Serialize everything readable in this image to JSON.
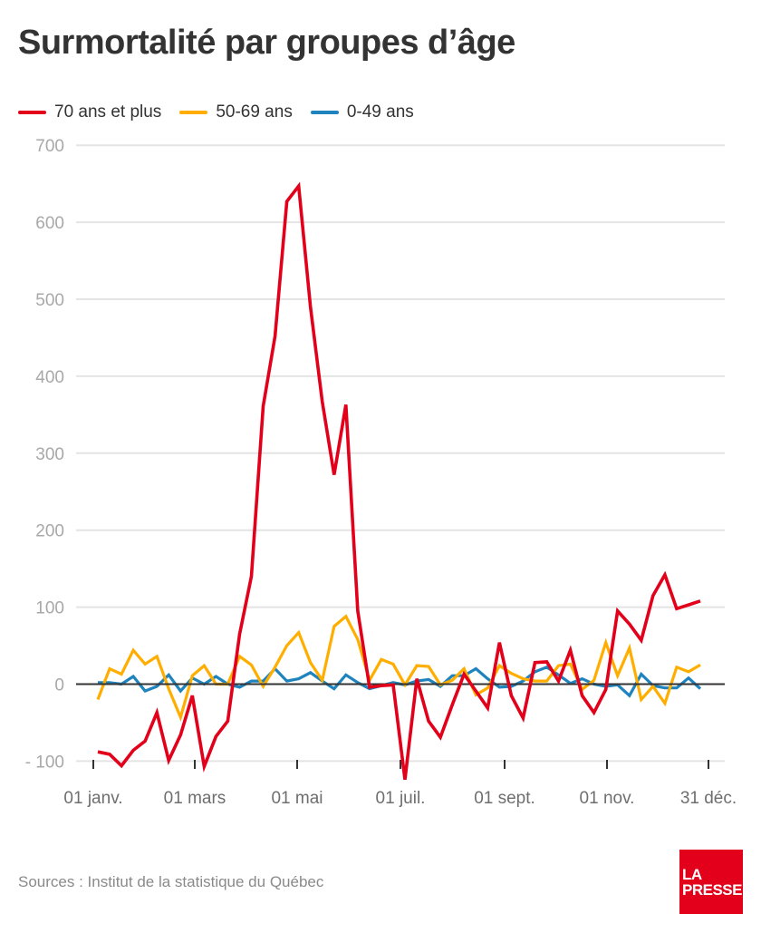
{
  "header": {
    "title": "Surmortalité par groupes d’âge"
  },
  "legend": [
    {
      "label": "70 ans et plus",
      "color": "#e2001a"
    },
    {
      "label": "50-69 ans",
      "color": "#ffae00"
    },
    {
      "label": "0-49 ans",
      "color": "#1f83bd"
    }
  ],
  "footer": {
    "source": "Sources : Institut de la statistique du Québec",
    "logo_line1": "LA",
    "logo_line2": "PRESSE"
  },
  "chart_data": {
    "type": "line",
    "title": "Surmortalité par groupes d’âge",
    "xlabel": "",
    "ylabel": "",
    "ylim": [
      -100,
      700
    ],
    "yticks": [
      700,
      600,
      500,
      400,
      300,
      200,
      100,
      0,
      -100
    ],
    "ytick_labels": [
      "700",
      "600",
      "500",
      "400",
      "300",
      "200",
      "100",
      "0",
      "- 100"
    ],
    "xtick_labels": [
      "01 janv.",
      "01 mars",
      "01 mai",
      "01 juil.",
      "01 sept.",
      "01 nov.",
      "31 déc."
    ],
    "x_unit": "week",
    "x": [
      1,
      2,
      3,
      4,
      5,
      6,
      7,
      8,
      9,
      10,
      11,
      12,
      13,
      14,
      15,
      16,
      17,
      18,
      19,
      20,
      21,
      22,
      23,
      24,
      25,
      26,
      27,
      28,
      29,
      30,
      31,
      32,
      33,
      34,
      35,
      36,
      37,
      38,
      39,
      40,
      41,
      42,
      43,
      44,
      45,
      46,
      47,
      48,
      49,
      50,
      51,
      52
    ],
    "grid": true,
    "legend_position": "top-left",
    "series": [
      {
        "name": "70 ans et plus",
        "color": "#e2001a",
        "values": [
          -88,
          -91,
          -106,
          -86,
          -74,
          -37,
          -99,
          -66,
          -15,
          -107,
          -68,
          -48,
          65,
          140,
          361,
          452,
          627,
          647,
          490,
          367,
          272,
          363,
          95,
          -4,
          -2,
          -1,
          -124,
          7,
          -48,
          -69,
          -27,
          13,
          -9,
          -31,
          54,
          -15,
          -44,
          28,
          29,
          4,
          44,
          -15,
          -37,
          -7,
          95,
          78,
          57,
          115,
          142,
          98,
          103,
          108
        ]
      },
      {
        "name": "50-69 ans",
        "color": "#ffae00",
        "values": [
          -20,
          20,
          13,
          44,
          26,
          36,
          -6,
          -43,
          11,
          24,
          0,
          0,
          36,
          25,
          -3,
          22,
          50,
          67,
          28,
          5,
          75,
          88,
          58,
          5,
          32,
          26,
          -1,
          24,
          23,
          -1,
          5,
          20,
          -14,
          -5,
          24,
          14,
          7,
          4,
          4,
          24,
          26,
          -7,
          5,
          54,
          11,
          47,
          -20,
          -3,
          -25,
          22,
          16,
          25
        ]
      },
      {
        "name": "0-49 ans",
        "color": "#1f83bd",
        "values": [
          2,
          2,
          0,
          10,
          -9,
          -3,
          12,
          -9,
          8,
          0,
          10,
          0,
          -4,
          4,
          4,
          20,
          4,
          7,
          15,
          4,
          -6,
          12,
          2,
          -6,
          -2,
          2,
          -1,
          4,
          6,
          -3,
          11,
          11,
          20,
          7,
          -4,
          -3,
          4,
          16,
          22,
          12,
          1,
          7,
          0,
          -3,
          -1,
          -15,
          13,
          -2,
          -5,
          -5,
          8,
          -6
        ]
      }
    ]
  }
}
